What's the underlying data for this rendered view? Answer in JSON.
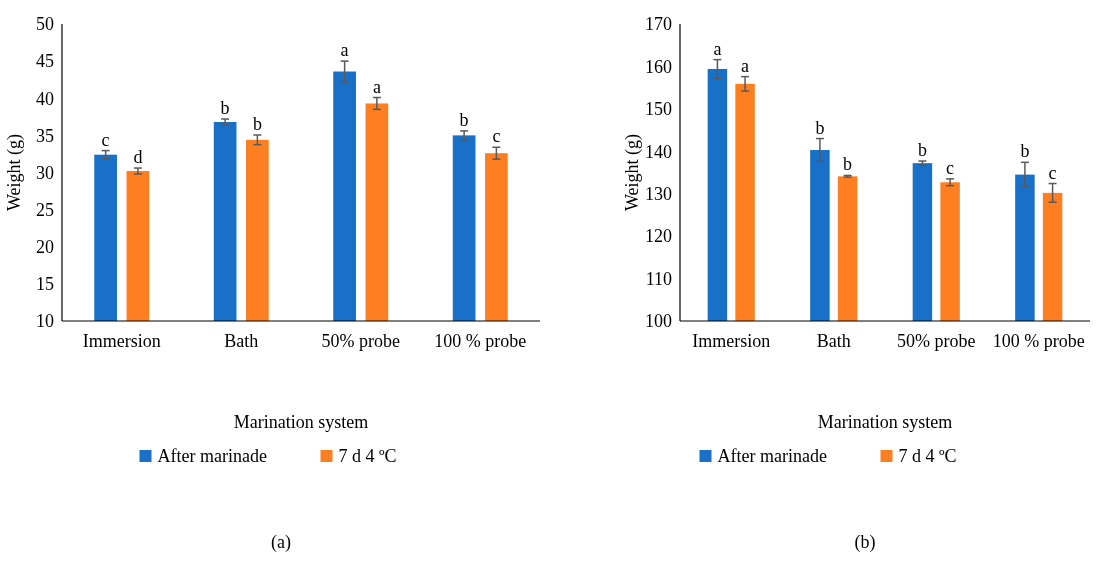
{
  "chart_data": [
    {
      "type": "bar",
      "xlabel": "Marination system",
      "ylabel": "Weight (g)",
      "categories": [
        "Immersion",
        "Bath",
        "50% probe",
        "100 % probe"
      ],
      "ylim": [
        10,
        50
      ],
      "yticks": [
        10,
        15,
        20,
        25,
        30,
        35,
        40,
        45,
        50
      ],
      "grid": false,
      "legend": "bottom",
      "annotations": [
        "(a)"
      ],
      "series": [
        {
          "name": "After marinade",
          "color": "#1870c8",
          "values": [
            32.4,
            36.8,
            43.6,
            35.0
          ],
          "errors": [
            0.55,
            0.4,
            1.4,
            0.6
          ],
          "value_labels": [
            "c",
            "b",
            "a",
            "b"
          ]
        },
        {
          "name": "7 d 4 ºC",
          "color": "#fe7f22",
          "values": [
            30.2,
            34.4,
            39.3,
            32.6
          ],
          "errors": [
            0.4,
            0.65,
            0.8,
            0.8
          ],
          "value_labels": [
            "d",
            "b",
            "a",
            "c"
          ]
        }
      ]
    },
    {
      "type": "bar",
      "xlabel": "Marination system",
      "ylabel": "Weight (g)",
      "categories": [
        "Immersion",
        "Bath",
        "50% probe",
        "100 % probe"
      ],
      "ylim": [
        100,
        170
      ],
      "yticks": [
        100,
        110,
        120,
        130,
        140,
        150,
        160,
        170
      ],
      "grid": false,
      "legend": "bottom",
      "annotations": [
        "(b)"
      ],
      "series": [
        {
          "name": "After marinade",
          "color": "#1870c8",
          "values": [
            159.4,
            140.3,
            137.2,
            134.5
          ],
          "errors": [
            2.2,
            2.7,
            0.5,
            2.9
          ],
          "value_labels": [
            "a",
            "b",
            "b",
            "b"
          ]
        },
        {
          "name": "7 d 4 ºC",
          "color": "#fe7f22",
          "values": [
            155.9,
            134.1,
            132.7,
            130.2
          ],
          "errors": [
            1.7,
            0.2,
            0.8,
            2.2
          ],
          "value_labels": [
            "a",
            "b",
            "c",
            "c"
          ]
        }
      ]
    }
  ]
}
